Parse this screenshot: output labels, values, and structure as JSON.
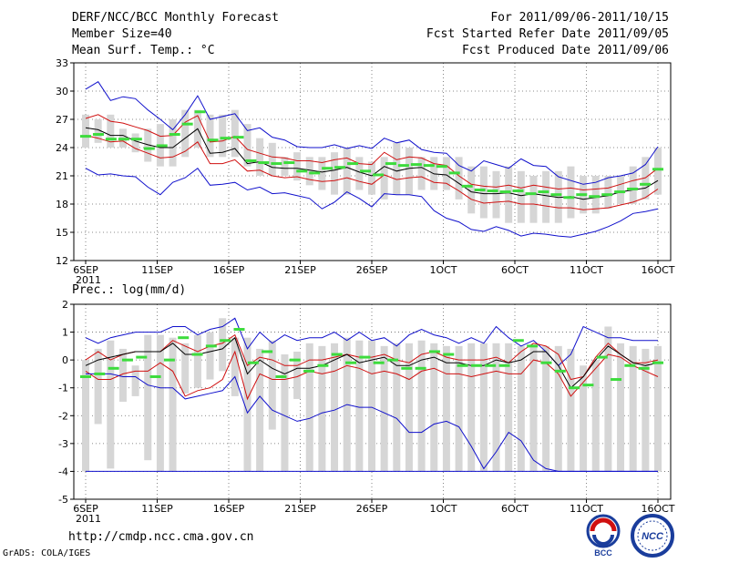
{
  "header": {
    "title": "DERF/NCC/BCC Monthly Forecast",
    "member_size": "Member Size=40",
    "variable": "Mean Surf. Temp.: °C",
    "period": "For 2011/09/06-2011/10/15",
    "started": "Fcst Started Refer Date 2011/09/05",
    "produced": "Fcst Produced Date 2011/09/06"
  },
  "footer": {
    "url": "http://cmdp.ncc.cma.gov.cn",
    "credit": "GrADS: COLA/IGES",
    "logo_left_text": "BCC",
    "logo_right_text": "NCC"
  },
  "colors": {
    "ensemble_box": "#d6d6d6",
    "mean_dash": "#3ddc3d",
    "range_line": "#1010cc",
    "spread_line": "#d01010",
    "ens_mean_line": "#000000",
    "grid": "#666666"
  },
  "chart_data": [
    {
      "type": "line",
      "title": "Mean Surf. Temp.: °C",
      "xlabel": "",
      "ylabel": "°C",
      "ylim": [
        12,
        33
      ],
      "yticks": [
        12,
        15,
        18,
        21,
        24,
        27,
        30,
        33
      ],
      "x_ticks": [
        {
          "day": 0,
          "label": "6SEP",
          "sub": "2011"
        },
        {
          "day": 5,
          "label": "11SEP"
        },
        {
          "day": 10,
          "label": "16SEP"
        },
        {
          "day": 15,
          "label": "21SEP"
        },
        {
          "day": 20,
          "label": "26SEP"
        },
        {
          "day": 25,
          "label": "1OCT"
        },
        {
          "day": 30,
          "label": "6OCT"
        },
        {
          "day": 35,
          "label": "11OCT"
        },
        {
          "day": 40,
          "label": "16OCT"
        }
      ],
      "days": 40,
      "boxes": [
        [
          24,
          27.5
        ],
        [
          24.5,
          27
        ],
        [
          24,
          27.5
        ],
        [
          24,
          26
        ],
        [
          23.5,
          25.5
        ],
        [
          22.5,
          26
        ],
        [
          22,
          26.5
        ],
        [
          22,
          27
        ],
        [
          23,
          28
        ],
        [
          24,
          28
        ],
        [
          23,
          27.5
        ],
        [
          23,
          27.5
        ],
        [
          23,
          28
        ],
        [
          22,
          26.5
        ],
        [
          21,
          25
        ],
        [
          21,
          24.5
        ],
        [
          21,
          23
        ],
        [
          20.5,
          23.5
        ],
        [
          20,
          23
        ],
        [
          19.5,
          23
        ],
        [
          19,
          23.5
        ],
        [
          19,
          24
        ],
        [
          19.5,
          23
        ],
        [
          19,
          22.5
        ],
        [
          18.5,
          23
        ],
        [
          19,
          24.5
        ],
        [
          19,
          24
        ],
        [
          19.5,
          23
        ],
        [
          19.5,
          23
        ],
        [
          19.5,
          23
        ],
        [
          18.5,
          23
        ],
        [
          17,
          22
        ],
        [
          16.5,
          22
        ],
        [
          16.5,
          21.5
        ],
        [
          16,
          22
        ],
        [
          16,
          21.5
        ],
        [
          16,
          21
        ],
        [
          16,
          21.5
        ],
        [
          16,
          21.5
        ],
        [
          16.5,
          22
        ],
        [
          17,
          21
        ],
        [
          17,
          21
        ],
        [
          17.5,
          21
        ],
        [
          18,
          21
        ],
        [
          18,
          22
        ],
        [
          18.5,
          23
        ],
        [
          19,
          24
        ]
      ],
      "mean_dashes": [
        25.2,
        25.4,
        24.9,
        24.9,
        24.9,
        23.9,
        24.2,
        25.4,
        26.5,
        27.8,
        24.8,
        25.0,
        25.1,
        22.6,
        22.4,
        22.3,
        22.4,
        21.5,
        21.3,
        21.8,
        21.9,
        22.3,
        21.5,
        21.1,
        22.3,
        22.1,
        22.2,
        22.1,
        22.0,
        21.3,
        19.9,
        19.5,
        19.4,
        19.3,
        19.4,
        19.1,
        19.3,
        19.0,
        18.7,
        19.0,
        18.8,
        19.0,
        19.3,
        19.6,
        20.1,
        21.7
      ],
      "series": [
        {
          "name": "maximum",
          "values": [
            30.2,
            31.0,
            29.0,
            29.4,
            29.2,
            28.0,
            27.0,
            25.9,
            27.5,
            29.5,
            27.0,
            27.3,
            27.6,
            25.8,
            26.1,
            25.1,
            24.8,
            24.1,
            24.0,
            24.0,
            24.3,
            23.9,
            24.2,
            23.9,
            25.0,
            24.5,
            24.8,
            23.8,
            23.5,
            23.4,
            22.1,
            21.5,
            22.6,
            22.2,
            21.8,
            22.8,
            22.1,
            22.0,
            20.9,
            20.5,
            20.1,
            20.3,
            20.8,
            21.0,
            21.3,
            22.2,
            24.1
          ]
        },
        {
          "name": "upper-spread",
          "values": [
            27.1,
            27.5,
            26.8,
            26.6,
            26.2,
            25.8,
            25.2,
            25.3,
            26.7,
            27.4,
            24.6,
            24.7,
            25.2,
            23.8,
            23.4,
            23.0,
            22.9,
            22.6,
            22.6,
            22.4,
            22.7,
            22.9,
            22.3,
            22.2,
            23.5,
            22.7,
            23.0,
            22.9,
            22.3,
            22.1,
            21.0,
            20.1,
            19.9,
            19.8,
            20.0,
            19.7,
            20.0,
            19.8,
            19.6,
            19.7,
            19.5,
            19.6,
            19.7,
            20.1,
            20.5,
            20.8,
            21.8
          ]
        },
        {
          "name": "ensemble-mean",
          "values": [
            26.1,
            25.9,
            25.3,
            25.3,
            24.7,
            24.3,
            24.0,
            24.0,
            25.0,
            26.0,
            23.4,
            23.5,
            23.9,
            22.3,
            22.5,
            21.9,
            21.8,
            21.8,
            21.6,
            21.4,
            21.6,
            21.9,
            21.4,
            21.0,
            22.0,
            21.5,
            21.8,
            21.9,
            21.2,
            21.1,
            20.2,
            19.3,
            19.1,
            19.1,
            19.2,
            18.9,
            19.1,
            18.9,
            18.7,
            18.8,
            18.5,
            18.7,
            18.9,
            19.3,
            19.5,
            19.7,
            20.5
          ]
        },
        {
          "name": "lower-spread",
          "values": [
            25.3,
            25.0,
            24.6,
            24.7,
            23.9,
            23.4,
            22.9,
            23.0,
            23.6,
            24.6,
            22.3,
            22.3,
            22.7,
            21.5,
            21.6,
            21.0,
            20.8,
            20.9,
            20.6,
            20.4,
            20.5,
            20.8,
            20.4,
            20.1,
            21.1,
            20.6,
            20.8,
            20.9,
            20.3,
            20.2,
            19.4,
            18.5,
            18.1,
            18.2,
            18.3,
            18.0,
            18.0,
            17.8,
            17.6,
            17.6,
            17.4,
            17.5,
            17.6,
            17.9,
            18.2,
            18.7,
            19.6
          ]
        },
        {
          "name": "minimum",
          "values": [
            21.8,
            21.1,
            21.2,
            21.0,
            20.9,
            19.8,
            19.0,
            20.3,
            20.8,
            21.8,
            20.0,
            20.1,
            20.3,
            19.5,
            19.8,
            19.1,
            19.2,
            18.9,
            18.6,
            17.5,
            18.2,
            19.3,
            18.6,
            17.7,
            19.1,
            19.0,
            19.0,
            18.8,
            17.3,
            16.5,
            16.1,
            15.3,
            15.1,
            15.6,
            15.2,
            14.6,
            14.9,
            14.8,
            14.6,
            14.5,
            14.8,
            15.1,
            15.6,
            16.2,
            17.0,
            17.2,
            17.5
          ]
        }
      ]
    },
    {
      "type": "line",
      "title": "Prec.: log(mm/d)",
      "xlabel": "",
      "ylabel": "log(mm/d)",
      "ylim": [
        -5,
        2
      ],
      "yticks": [
        -5,
        -4,
        -3,
        -2,
        -1,
        0,
        1,
        2
      ],
      "x_ticks": [
        {
          "day": 0,
          "label": "6SEP",
          "sub": "2011"
        },
        {
          "day": 5,
          "label": "11SEP"
        },
        {
          "day": 10,
          "label": "16SEP"
        },
        {
          "day": 15,
          "label": "21SEP"
        },
        {
          "day": 20,
          "label": "26SEP"
        },
        {
          "day": 25,
          "label": "1OCT"
        },
        {
          "day": 30,
          "label": "6OCT"
        },
        {
          "day": 35,
          "label": "11OCT"
        },
        {
          "day": 40,
          "label": "16OCT"
        }
      ],
      "days": 40,
      "boxes": [
        [
          -4,
          0
        ],
        [
          -2.3,
          0.4
        ],
        [
          -3.9,
          0.7
        ],
        [
          -1.5,
          0.4
        ],
        [
          -1.3,
          -0.2
        ],
        [
          -3.6,
          0.9
        ],
        [
          -4,
          0.9
        ],
        [
          -4,
          0.8
        ],
        [
          -1.2,
          0.6
        ],
        [
          -1,
          0.9
        ],
        [
          -0.7,
          1
        ],
        [
          -0.4,
          1.5
        ],
        [
          -1.3,
          0.8
        ],
        [
          -4,
          0.8
        ],
        [
          -4,
          0.4
        ],
        [
          -2.5,
          0.7
        ],
        [
          -4,
          0.2
        ],
        [
          -1.4,
          0.3
        ],
        [
          -4,
          0.6
        ],
        [
          -4,
          0.5
        ],
        [
          -4,
          0.6
        ],
        [
          -4,
          0.8
        ],
        [
          -4,
          0.7
        ],
        [
          -4,
          0.7
        ],
        [
          -4,
          0.5
        ],
        [
          -4,
          0.6
        ],
        [
          -4,
          0.6
        ],
        [
          -4,
          0.7
        ],
        [
          -4,
          0.6
        ],
        [
          -4,
          0.5
        ],
        [
          -4,
          0.5
        ],
        [
          -4,
          0.6
        ],
        [
          -4,
          0.6
        ],
        [
          -4,
          0.6
        ],
        [
          -4,
          0.6
        ],
        [
          -4,
          0.5
        ],
        [
          -4,
          0.5
        ],
        [
          -4,
          0.5
        ],
        [
          -4,
          0.5
        ],
        [
          -4,
          0.4
        ],
        [
          -4,
          -0.2
        ],
        [
          -4,
          0
        ],
        [
          -4,
          1.2
        ],
        [
          -4,
          0.6
        ],
        [
          -4,
          0.5
        ],
        [
          -4,
          0.4
        ],
        [
          -4,
          0.5
        ]
      ],
      "mean_dashes": [
        -0.6,
        -0.5,
        -0.3,
        0.0,
        0.1,
        -0.6,
        0.0,
        0.8,
        0.2,
        0.5,
        0.7,
        1.1,
        -0.1,
        0.3,
        -0.6,
        0.0,
        -0.4,
        -0.2,
        0.2,
        -0.1,
        0.1,
        -0.1,
        0.0,
        -0.3,
        -0.3,
        0.3,
        0.2,
        -0.2,
        -0.2,
        -0.2,
        -0.2,
        0.7,
        0.5,
        -0.1,
        -0.4,
        -1.0,
        -0.9,
        0.1,
        -0.7,
        -0.2,
        -0.3,
        -0.1
      ],
      "series": [
        {
          "name": "maximum",
          "values": [
            0.8,
            0.6,
            0.8,
            0.9,
            1.0,
            1.0,
            1.0,
            1.2,
            1.2,
            0.9,
            1.1,
            1.2,
            1.5,
            0.4,
            1.0,
            0.6,
            0.9,
            0.7,
            0.8,
            0.8,
            1.0,
            0.7,
            1.0,
            0.7,
            0.8,
            0.5,
            0.9,
            1.1,
            0.9,
            0.8,
            0.6,
            0.8,
            0.6,
            1.2,
            0.8,
            0.5,
            0.7,
            0.3,
            -0.2,
            0.2,
            1.2,
            1.0,
            0.8,
            0.8,
            0.7,
            0.7,
            0.7
          ]
        },
        {
          "name": "upper-spread",
          "values": [
            0.0,
            0.3,
            0.0,
            0.2,
            0.3,
            0.3,
            0.3,
            0.7,
            0.5,
            0.3,
            0.5,
            0.6,
            0.9,
            -0.2,
            0.1,
            0.0,
            -0.2,
            -0.2,
            0.0,
            0.0,
            0.1,
            0.2,
            0.1,
            0.1,
            0.2,
            0.0,
            -0.1,
            0.2,
            0.3,
            0.1,
            0.0,
            0.0,
            0.0,
            0.1,
            -0.1,
            0.3,
            0.6,
            0.5,
            0.2,
            -0.7,
            -0.6,
            0.1,
            0.6,
            0.2,
            -0.1,
            -0.1,
            0.0
          ]
        },
        {
          "name": "ensemble-mean",
          "values": [
            -0.2,
            0.0,
            0.1,
            0.2,
            0.3,
            0.3,
            0.3,
            0.6,
            0.2,
            0.2,
            0.3,
            0.4,
            0.8,
            -0.5,
            0.0,
            -0.3,
            -0.5,
            -0.3,
            -0.3,
            -0.2,
            0.0,
            0.2,
            -0.1,
            0.0,
            0.1,
            -0.2,
            -0.2,
            0.0,
            0.1,
            -0.1,
            -0.1,
            -0.2,
            -0.2,
            0.0,
            -0.1,
            0.0,
            0.3,
            0.3,
            -0.2,
            -1.0,
            -0.6,
            0.0,
            0.5,
            0.2,
            -0.1,
            -0.2,
            -0.1
          ]
        },
        {
          "name": "lower-spread",
          "values": [
            -0.4,
            -0.7,
            -0.7,
            -0.5,
            -0.4,
            -0.4,
            -0.1,
            -0.4,
            -1.3,
            -1.1,
            -1.0,
            -0.7,
            0.3,
            -1.4,
            -0.5,
            -0.7,
            -0.7,
            -0.6,
            -0.4,
            -0.5,
            -0.4,
            -0.2,
            -0.3,
            -0.5,
            -0.4,
            -0.5,
            -0.7,
            -0.4,
            -0.3,
            -0.5,
            -0.5,
            -0.6,
            -0.5,
            -0.4,
            -0.5,
            -0.5,
            0.0,
            -0.1,
            -0.5,
            -1.3,
            -0.8,
            -0.3,
            0.2,
            0.1,
            -0.2,
            -0.4,
            -0.6
          ]
        },
        {
          "name": "minimum",
          "values": [
            -0.5,
            -0.5,
            -0.5,
            -0.6,
            -0.6,
            -0.9,
            -1.0,
            -1.0,
            -1.4,
            -1.3,
            -1.2,
            -1.1,
            -0.6,
            -1.9,
            -1.3,
            -1.8,
            -2.0,
            -2.2,
            -2.1,
            -1.9,
            -1.8,
            -1.6,
            -1.7,
            -1.7,
            -1.9,
            -2.1,
            -2.6,
            -2.6,
            -2.3,
            -2.2,
            -2.4,
            -3.1,
            -3.9,
            -3.3,
            -2.6,
            -2.9,
            -3.6,
            -3.9,
            -4.0,
            -4.0,
            -4.0,
            -4.0,
            -4.0,
            -4.0,
            -4.0,
            -4.0,
            -4.0
          ]
        }
      ]
    }
  ]
}
